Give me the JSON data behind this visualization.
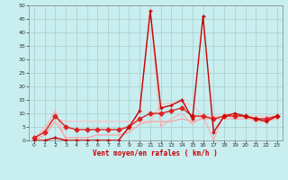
{
  "title": "",
  "xlabel": "Vent moyen/en rafales ( km/h )",
  "bg_color": "#c8eef0",
  "grid_color": "#aacccc",
  "xlim": [
    -0.5,
    23.5
  ],
  "ylim": [
    0,
    50
  ],
  "yticks": [
    0,
    5,
    10,
    15,
    20,
    25,
    30,
    35,
    40,
    45,
    50
  ],
  "xticks": [
    0,
    1,
    2,
    3,
    4,
    5,
    6,
    7,
    8,
    9,
    10,
    11,
    12,
    13,
    14,
    15,
    16,
    17,
    18,
    19,
    20,
    21,
    22,
    23
  ],
  "x": [
    0,
    1,
    2,
    3,
    4,
    5,
    6,
    7,
    8,
    9,
    10,
    11,
    12,
    13,
    14,
    15,
    16,
    17,
    18,
    19,
    20,
    21,
    22,
    23
  ],
  "s_avg": [
    0,
    2,
    7,
    1,
    1,
    1,
    2,
    2,
    2,
    3,
    6,
    7,
    7,
    7,
    8,
    7,
    8,
    8,
    8,
    8,
    8,
    8,
    8,
    9
  ],
  "s_gust": [
    0,
    5,
    8,
    7,
    7,
    7,
    7,
    7,
    7,
    7,
    7,
    7,
    13,
    14,
    14,
    13,
    9,
    9,
    9,
    9,
    9,
    9,
    9,
    9
  ],
  "s_trend1": [
    0,
    4,
    11,
    0,
    0,
    0,
    0,
    0,
    0,
    5,
    11,
    48,
    5,
    8,
    10,
    6,
    9,
    0,
    10,
    9,
    9,
    7,
    7,
    8
  ],
  "s_trend2": [
    0,
    0,
    1,
    0,
    0,
    0,
    0,
    0,
    0,
    5,
    11,
    48,
    12,
    13,
    15,
    8,
    46,
    3,
    9,
    10,
    9,
    8,
    7,
    9
  ],
  "s_smooth": [
    1,
    3,
    9,
    5,
    4,
    4,
    4,
    4,
    4,
    5,
    8,
    10,
    10,
    11,
    12,
    9,
    9,
    8,
    9,
    9,
    9,
    8,
    8,
    9
  ],
  "color_avg": "#ff9999",
  "color_gust": "#ffbbbb",
  "color_trend1": "#ffaaaa",
  "color_trend2": "#cc0000",
  "color_smooth": "#dd2222",
  "lw_thin": 0.8,
  "lw_main": 1.0,
  "markersize": 2.5
}
